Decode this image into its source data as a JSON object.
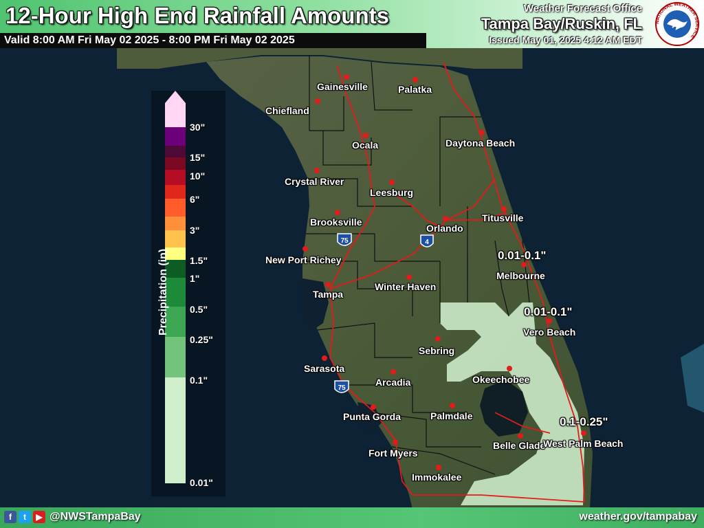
{
  "header": {
    "title": "12-Hour High End Rainfall Amounts",
    "valid": "Valid 8:00 AM Fri May 02 2025 - 8:00 PM Fri May 02 2025",
    "wfo_label": "Weather Forecast Office",
    "wfo_name": "Tampa Bay/Ruskin, FL",
    "issued": "Issued May 01, 2025 4:12 AM EDT",
    "logo_text": "NATIONAL WEATHER SERVICE"
  },
  "footer": {
    "handle": "@NWSTampaBay",
    "website": "weather.gov/tampabay",
    "social": [
      {
        "icon": "facebook-icon",
        "glyph": "f",
        "color": "#3b5998"
      },
      {
        "icon": "twitter-icon",
        "glyph": "t",
        "color": "#1da1f2"
      },
      {
        "icon": "youtube-icon",
        "glyph": "▶",
        "color": "#d62020"
      }
    ]
  },
  "legend": {
    "title": "Precipitation (in)",
    "colors": [
      "#ffd6f3",
      "#6b007a",
      "#4d0a36",
      "#7a0a24",
      "#b50d23",
      "#e0271b",
      "#ff5b2b",
      "#ff8f3b",
      "#ffc34d",
      "#ffff80",
      "#0c5c23",
      "#1c8a38",
      "#3da653",
      "#72c47d",
      "#a6dba6",
      "#cfeecc"
    ],
    "labels": [
      "30\"",
      "15\"",
      "10\"",
      "6\"",
      "3\"",
      "1.5\"",
      "1\"",
      "0.5\"",
      "0.25\"",
      "0.1\"",
      "0.01\""
    ]
  },
  "cities": [
    {
      "name": "Gainesville"
    },
    {
      "name": "Palatka"
    },
    {
      "name": "Chiefland"
    },
    {
      "name": "Ocala"
    },
    {
      "name": "Daytona Beach"
    },
    {
      "name": "Crystal River"
    },
    {
      "name": "Leesburg"
    },
    {
      "name": "Brooksville"
    },
    {
      "name": "Orlando"
    },
    {
      "name": "Titusville"
    },
    {
      "name": "New Port Richey"
    },
    {
      "name": "Melbourne"
    },
    {
      "name": "Tampa"
    },
    {
      "name": "Winter Haven"
    },
    {
      "name": "Vero Beach"
    },
    {
      "name": "Sebring"
    },
    {
      "name": "Sarasota"
    },
    {
      "name": "Arcadia"
    },
    {
      "name": "Okeechobee"
    },
    {
      "name": "Punta Gorda"
    },
    {
      "name": "Palmdale"
    },
    {
      "name": "Belle Glade"
    },
    {
      "name": "West Palm Beach"
    },
    {
      "name": "Fort Myers"
    },
    {
      "name": "Immokalee"
    }
  ],
  "amounts": [
    "0.01-0.1\"",
    "0.01-0.1\"",
    "0.1-0.25\""
  ],
  "highways": [
    "75",
    "4",
    "75"
  ],
  "colors": {
    "ocean": "#0e2334",
    "land": "#4a5a3a",
    "rain_light": "#cfeecc",
    "roads": "#e21b1b",
    "county_lines": "#111111",
    "header_green": "#4fc36f",
    "footer_green": "#46b866"
  }
}
